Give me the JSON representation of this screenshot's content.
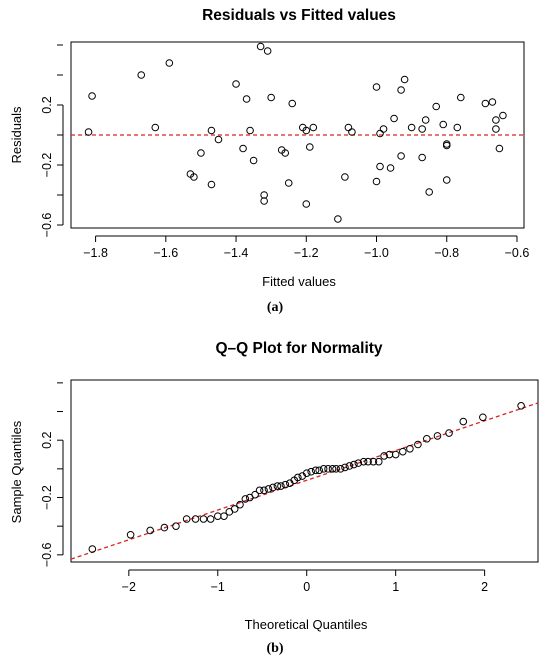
{
  "chart_data": [
    {
      "panel": "(a)",
      "type": "scatter",
      "title": "Residuals vs Fitted values",
      "xlabel": "Fitted values",
      "ylabel": "Residuals",
      "xlim": [
        -1.87,
        -0.58
      ],
      "ylim": [
        -0.62,
        0.62
      ],
      "xticks": [
        -1.8,
        -1.6,
        -1.4,
        -1.2,
        -1.0,
        -0.8,
        -0.6
      ],
      "xtick_labels": [
        "−1.8",
        "−1.6",
        "−1.4",
        "−1.2",
        "−1.0",
        "−0.8",
        "−0.6"
      ],
      "yticks": [
        -0.6,
        -0.2,
        0.2
      ],
      "ytick_labels": [
        "−0.6",
        "−0.2",
        "0.2"
      ],
      "reference_line": {
        "y": 0,
        "color": "#dd2222",
        "style": "dashed"
      },
      "grid": false,
      "points": [
        [
          -1.82,
          0.02
        ],
        [
          -1.81,
          0.26
        ],
        [
          -1.67,
          0.4
        ],
        [
          -1.63,
          0.05
        ],
        [
          -1.59,
          0.48
        ],
        [
          -1.53,
          -0.26
        ],
        [
          -1.52,
          -0.28
        ],
        [
          -1.5,
          -0.12
        ],
        [
          -1.47,
          -0.33
        ],
        [
          -1.47,
          0.03
        ],
        [
          -1.45,
          -0.03
        ],
        [
          -1.4,
          0.34
        ],
        [
          -1.38,
          -0.09
        ],
        [
          -1.37,
          0.24
        ],
        [
          -1.36,
          0.03
        ],
        [
          -1.35,
          -0.17
        ],
        [
          -1.33,
          0.59
        ],
        [
          -1.32,
          -0.44
        ],
        [
          -1.32,
          -0.4
        ],
        [
          -1.31,
          0.56
        ],
        [
          -1.3,
          0.25
        ],
        [
          -1.27,
          -0.1
        ],
        [
          -1.26,
          -0.12
        ],
        [
          -1.25,
          -0.32
        ],
        [
          -1.24,
          0.21
        ],
        [
          -1.21,
          0.05
        ],
        [
          -1.2,
          -0.46
        ],
        [
          -1.2,
          0.03
        ],
        [
          -1.19,
          -0.08
        ],
        [
          -1.18,
          0.05
        ],
        [
          -1.11,
          -0.56
        ],
        [
          -1.09,
          -0.28
        ],
        [
          -1.08,
          0.05
        ],
        [
          -1.07,
          0.02
        ],
        [
          -1.0,
          0.32
        ],
        [
          -0.99,
          -0.21
        ],
        [
          -1.0,
          -0.31
        ],
        [
          -0.99,
          0.01
        ],
        [
          -0.98,
          0.04
        ],
        [
          -0.96,
          -0.22
        ],
        [
          -0.95,
          0.11
        ],
        [
          -0.93,
          -0.14
        ],
        [
          -0.93,
          0.3
        ],
        [
          -0.92,
          0.37
        ],
        [
          -0.9,
          0.05
        ],
        [
          -0.87,
          -0.15
        ],
        [
          -0.87,
          0.04
        ],
        [
          -0.86,
          0.1
        ],
        [
          -0.85,
          -0.38
        ],
        [
          -0.83,
          0.19
        ],
        [
          -0.81,
          0.07
        ],
        [
          -0.8,
          -0.3
        ],
        [
          -0.8,
          -0.06
        ],
        [
          -0.8,
          -0.07
        ],
        [
          -0.77,
          0.05
        ],
        [
          -0.76,
          0.25
        ],
        [
          -0.69,
          0.21
        ],
        [
          -0.67,
          0.22
        ],
        [
          -0.66,
          0.04
        ],
        [
          -0.66,
          0.1
        ],
        [
          -0.65,
          -0.09
        ],
        [
          -0.64,
          0.13
        ]
      ]
    },
    {
      "panel": "(b)",
      "type": "scatter",
      "title": "Q–Q Plot for Normality",
      "xlabel": "Theoretical Quantiles",
      "ylabel": "Sample Quantiles",
      "xlim": [
        -2.65,
        2.6
      ],
      "ylim": [
        -0.65,
        0.62
      ],
      "xticks": [
        -2,
        -1,
        0,
        1,
        2
      ],
      "xtick_labels": [
        "−2",
        "−1",
        "0",
        "1",
        "2"
      ],
      "yticks": [
        -0.6,
        -0.2,
        0.2
      ],
      "ytick_labels": [
        "−0.6",
        "−0.2",
        "0.2"
      ],
      "reference_line": {
        "x": [
          -2.65,
          2.6
        ],
        "y": [
          -0.63,
          0.46
        ],
        "color": "#dd2222",
        "style": "dashed"
      },
      "grid": false,
      "points": [
        [
          -2.41,
          -0.56
        ],
        [
          -1.98,
          -0.46
        ],
        [
          -1.76,
          -0.43
        ],
        [
          -1.6,
          -0.41
        ],
        [
          -1.47,
          -0.4
        ],
        [
          -1.35,
          -0.35
        ],
        [
          -1.25,
          -0.35
        ],
        [
          -1.16,
          -0.35
        ],
        [
          -1.08,
          -0.35
        ],
        [
          -1.0,
          -0.33
        ],
        [
          -0.93,
          -0.33
        ],
        [
          -0.87,
          -0.3
        ],
        [
          -0.81,
          -0.28
        ],
        [
          -0.75,
          -0.25
        ],
        [
          -0.69,
          -0.21
        ],
        [
          -0.64,
          -0.2
        ],
        [
          -0.58,
          -0.18
        ],
        [
          -0.53,
          -0.15
        ],
        [
          -0.48,
          -0.15
        ],
        [
          -0.43,
          -0.14
        ],
        [
          -0.38,
          -0.13
        ],
        [
          -0.33,
          -0.12
        ],
        [
          -0.29,
          -0.12
        ],
        [
          -0.24,
          -0.11
        ],
        [
          -0.19,
          -0.1
        ],
        [
          -0.14,
          -0.08
        ],
        [
          -0.1,
          -0.06
        ],
        [
          -0.05,
          -0.05
        ],
        [
          0.0,
          -0.03
        ],
        [
          0.05,
          -0.02
        ],
        [
          0.1,
          -0.01
        ],
        [
          0.14,
          -0.01
        ],
        [
          0.19,
          0.0
        ],
        [
          0.24,
          0.0
        ],
        [
          0.29,
          0.0
        ],
        [
          0.33,
          0.0
        ],
        [
          0.38,
          0.0
        ],
        [
          0.43,
          0.01
        ],
        [
          0.48,
          0.02
        ],
        [
          0.53,
          0.03
        ],
        [
          0.58,
          0.04
        ],
        [
          0.64,
          0.05
        ],
        [
          0.69,
          0.05
        ],
        [
          0.75,
          0.05
        ],
        [
          0.81,
          0.05
        ],
        [
          0.87,
          0.09
        ],
        [
          0.93,
          0.1
        ],
        [
          1.0,
          0.1
        ],
        [
          1.08,
          0.12
        ],
        [
          1.16,
          0.14
        ],
        [
          1.25,
          0.17
        ],
        [
          1.35,
          0.21
        ],
        [
          1.47,
          0.23
        ],
        [
          1.6,
          0.25
        ],
        [
          1.76,
          0.33
        ],
        [
          1.98,
          0.36
        ],
        [
          2.41,
          0.44
        ]
      ]
    }
  ],
  "captions": [
    "(a)",
    "(b)"
  ]
}
